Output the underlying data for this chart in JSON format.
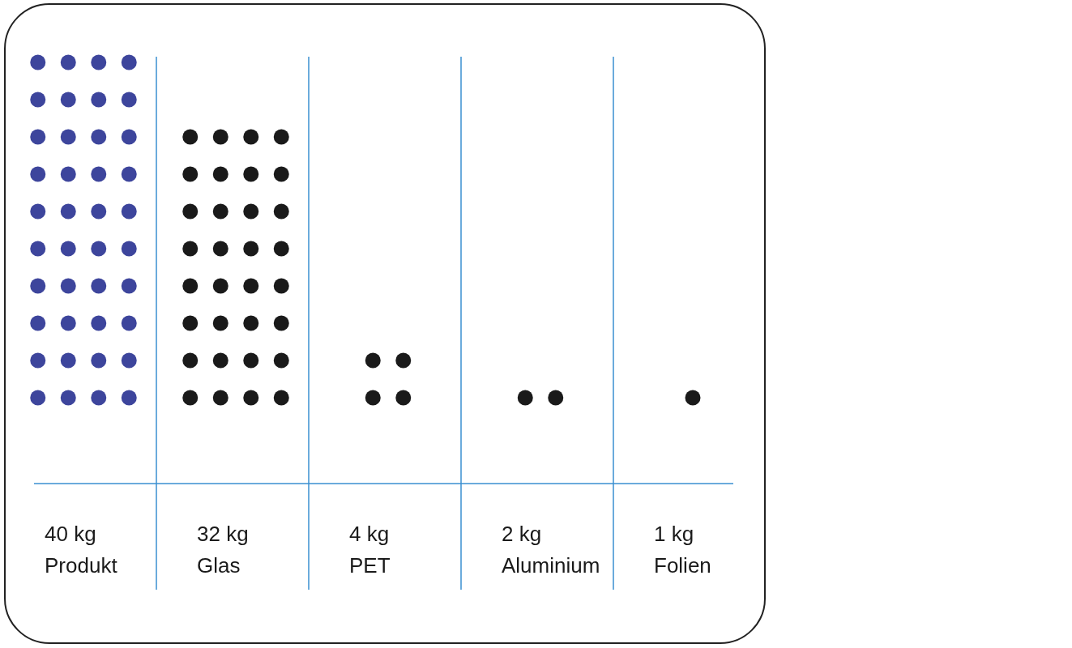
{
  "chart_data": {
    "type": "other",
    "categories": [
      "Produkt",
      "Glas",
      "PET",
      "Aluminium",
      "Folien"
    ],
    "values": [
      40,
      32,
      4,
      2,
      1
    ],
    "value_labels": [
      "40 kg",
      "32 kg",
      "4 kg",
      "2 kg",
      "1 kg"
    ],
    "colors": [
      "#3d459c",
      "#1a1a1a",
      "#1a1a1a",
      "#1a1a1a",
      "#1a1a1a"
    ]
  }
}
